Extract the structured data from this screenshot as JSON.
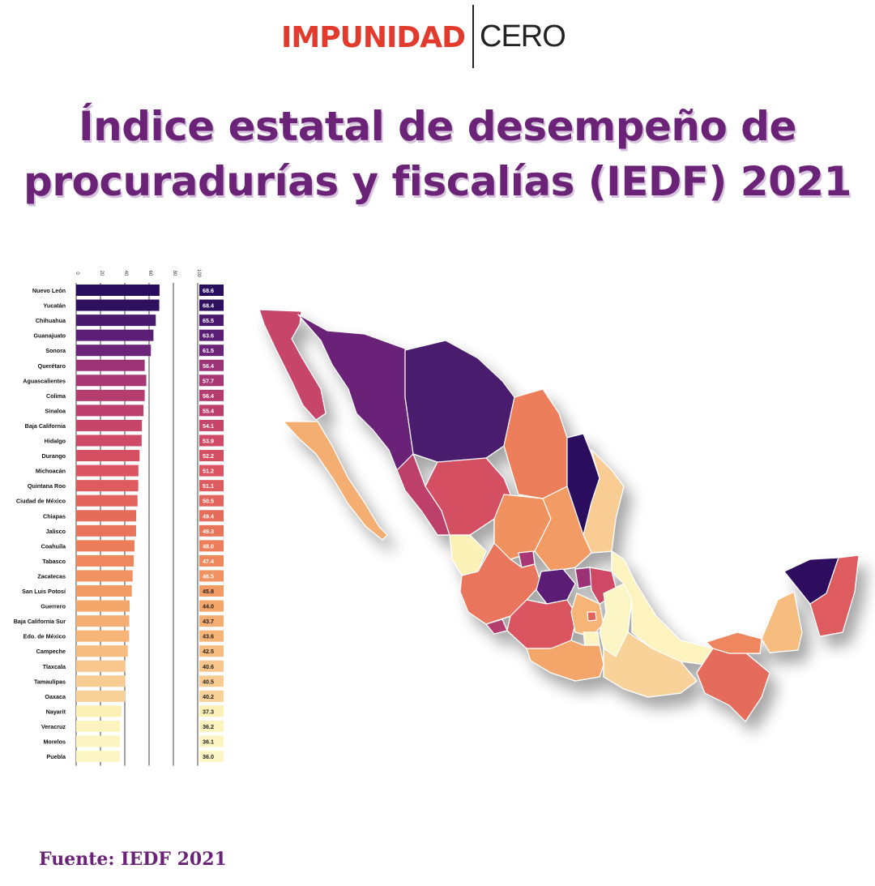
{
  "header": {
    "logo_left": "IMPUNIDAD",
    "logo_right": "CERO",
    "title_line1": "Índice estatal de desempeño de",
    "title_line2": "procuradurías y fiscalías (IEDF) 2021"
  },
  "footer": {
    "source": "Fuente: IEDF 2021"
  },
  "chart_data": {
    "type": "bar",
    "orientation": "horizontal",
    "xlim": [
      0,
      100
    ],
    "ticks": [
      0,
      20,
      40,
      60,
      80,
      100
    ],
    "grid": true,
    "categories": [
      "Nuevo León",
      "Yucatán",
      "Chihuahua",
      "Guanajuato",
      "Sonora",
      "Querétaro",
      "Aguascalientes",
      "Colima",
      "Sinaloa",
      "Baja California",
      "Hidalgo",
      "Durango",
      "Michoacán",
      "Quintana Roo",
      "Ciudad de México",
      "Chiapas",
      "Jalisco",
      "Coahuila",
      "Tabasco",
      "Zacatecas",
      "San Luis Potosí",
      "Guerrero",
      "Baja California Sur",
      "Edo. de México",
      "Campeche",
      "Tlaxcala",
      "Tamaulipas",
      "Oaxaca",
      "Nayarit",
      "Veracruz",
      "Morelos",
      "Puebla"
    ],
    "values": [
      68.6,
      68.4,
      65.5,
      63.6,
      61.5,
      56.4,
      57.7,
      56.4,
      55.4,
      54.1,
      53.9,
      52.2,
      51.2,
      51.1,
      50.5,
      49.4,
      49.3,
      48.0,
      47.4,
      46.5,
      45.8,
      44.0,
      43.7,
      43.6,
      42.5,
      40.6,
      40.5,
      40.2,
      37.3,
      36.2,
      36.1,
      36.0
    ],
    "value_labels": [
      "68.6",
      "68.4",
      "65.5",
      "63.6",
      "61.5",
      "56.4",
      "57.7",
      "56.4",
      "55.4",
      "54.1",
      "53.9",
      "52.2",
      "51.2",
      "51.1",
      "50.5",
      "49.4",
      "49.3",
      "48.0",
      "47.4",
      "46.5",
      "45.8",
      "44.0",
      "43.7",
      "43.6",
      "42.5",
      "40.6",
      "40.5",
      "40.2",
      "37.3",
      "36.2",
      "36.1",
      "36.0"
    ],
    "colors": [
      "#2a0e5e",
      "#2f105f",
      "#4a1a6e",
      "#5a1f74",
      "#6a2478",
      "#9b3376",
      "#a83874",
      "#b43c6e",
      "#bd3f6b",
      "#c8456a",
      "#cf4a66",
      "#d54f63",
      "#da5561",
      "#de5c5f",
      "#e2645c",
      "#e56c5b",
      "#e8755b",
      "#ec7e5c",
      "#ee875d",
      "#f09261",
      "#f29b65",
      "#f4a66b",
      "#f5ae72",
      "#f6b477",
      "#f7bc80",
      "#f8c68c",
      "#f9cc93",
      "#f9d29a",
      "#fbf0b6",
      "#fcf3be",
      "#fcf4c3",
      "#fcf5c6"
    ]
  },
  "map": {
    "description_label": ""
  }
}
